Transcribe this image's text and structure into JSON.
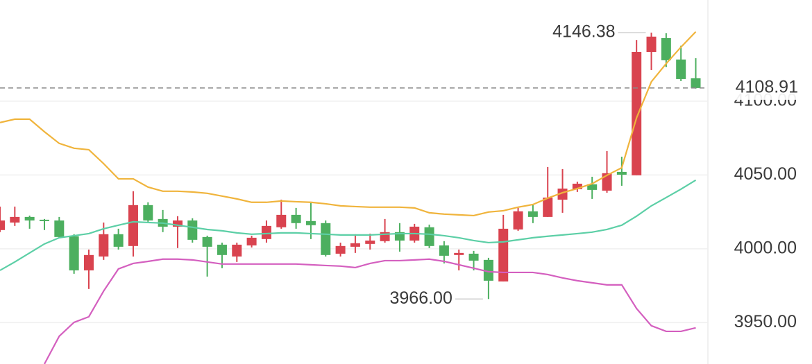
{
  "chart_data": {
    "type": "candlestick",
    "up_color": "#d9434f",
    "down_color": "#4caf5f",
    "ohlc": {
      "open": [
        4012.7,
        4017.8,
        4021.6,
        4019.7,
        4019.2,
        4008.5,
        3985.4,
        3994.8,
        4009.9,
        4001.9,
        4029.6,
        4020.2,
        4015,
        4019.2,
        4008,
        4002.8,
        3994.8,
        4002.3,
        4006.6,
        4014.6,
        4023,
        4018.8,
        4017.4,
        3996.7,
        4001.4,
        4003.3,
        4005.2,
        4011.3,
        4005.6,
        4014.6,
        4002.3,
        3995.8,
        3996.7,
        3992.5,
        3977.9,
        4013.1,
        4025.4,
        4021.6,
        4033.3,
        4040.4,
        4043.7,
        4039.4,
        4052.1,
        4049.8,
        4133.3,
        4142.7,
        4128.2,
        4115.5
      ],
      "high": [
        4028.6,
        4028.6,
        4022.5,
        4020.2,
        4021.6,
        4009.9,
        3999.5,
        4017.8,
        4013.6,
        4039,
        4031.5,
        4026.3,
        4022.1,
        4020.7,
        4008.9,
        4004.2,
        4004.2,
        4008.9,
        4019.2,
        4033.3,
        4027.7,
        4031,
        4019.2,
        4004.2,
        4009.9,
        4010.3,
        4020.2,
        4017.4,
        4016.9,
        4016.4,
        4005.2,
        3999.5,
        3998.6,
        3993.9,
        4023,
        4027.7,
        4029.6,
        4055.4,
        4054,
        4045.5,
        4048.8,
        4066.2,
        4062.4,
        4141.3,
        4146.38,
        4146,
        4137.6,
        4129.1
      ],
      "low": [
        4011.3,
        4015.5,
        4013.6,
        4012.7,
        4007.5,
        3983.1,
        3972.8,
        3992.5,
        3999.5,
        3994.8,
        4018.3,
        4011.3,
        4000.5,
        4004.2,
        3981.2,
        3986.9,
        3991.1,
        4000.9,
        4004.2,
        4013.6,
        4013.6,
        4006.6,
        3994.8,
        3994.8,
        3997.2,
        3999.5,
        4004.2,
        3998.1,
        4004.2,
        4000.5,
        3990.1,
        3985.4,
        3985.4,
        3966,
        3977.9,
        4012.2,
        4017.4,
        4021.6,
        4024.4,
        4038.5,
        4033.8,
        4038,
        4042.7,
        4049.8,
        4121.1,
        4123,
        4113.6,
        4108.5
      ],
      "close": [
        4019.2,
        4021.6,
        4019.2,
        4018.8,
        4008,
        3985.4,
        3995.8,
        4009.9,
        4001.4,
        4029.6,
        4019.2,
        4015,
        4019.2,
        4006.1,
        4001.4,
        3995.8,
        4002.8,
        4007.5,
        4015.5,
        4023,
        4017.4,
        4016,
        3995.8,
        4001.9,
        4003.8,
        4005.6,
        4011.3,
        4005.6,
        4015,
        4001.9,
        3995.3,
        3997.2,
        3992,
        3978.4,
        4013.6,
        4025.4,
        4021.6,
        4034.7,
        4040.8,
        4044.1,
        4039.9,
        4051.2,
        4050.2,
        4133.3,
        4143.7,
        4127.7,
        4115,
        4108.91
      ]
    },
    "lines": [
      {
        "color": "#f0b43c",
        "values": [
          4085.5,
          4087.8,
          4087.8,
          4079.3,
          4071.4,
          4068.1,
          4067.1,
          4057.7,
          4047.4,
          4047.4,
          4041.8,
          4039,
          4039,
          4038.5,
          4037.6,
          4035.7,
          4033.8,
          4031.5,
          4031.5,
          4032.4,
          4031.9,
          4031.5,
          4030.5,
          4029.1,
          4028.6,
          4028.2,
          4028.2,
          4028.2,
          4027.7,
          4024.4,
          4023.5,
          4023,
          4022.5,
          4024.9,
          4025.8,
          4028.2,
          4030,
          4034.3,
          4038,
          4040.8,
          4044.1,
          4049.8,
          4054.9,
          4088.7,
          4113.1,
          4125.4,
          4136.6,
          4147
        ]
      },
      {
        "color": "#5ccfa6",
        "values": [
          3985.4,
          3991.1,
          3997.2,
          4003.3,
          4007.5,
          4008.9,
          4010.3,
          4013.6,
          4016,
          4018.3,
          4017.8,
          4017.4,
          4016,
          4014.6,
          4013.1,
          4012.2,
          4010.8,
          4009.9,
          4010.3,
          4010.8,
          4010.8,
          4010.3,
          4009.9,
          4009.4,
          4009.4,
          4009.4,
          4009.9,
          4010.3,
          4010.3,
          4009.9,
          4008.9,
          4007.5,
          4005.6,
          4004.2,
          4004.7,
          4006.1,
          4007.5,
          4008.5,
          4009.4,
          4010.3,
          4011.3,
          4013.1,
          4016,
          4022.1,
          4029.1,
          4034.7,
          4040.4,
          4046.5
        ]
      },
      {
        "color": "#d45fbf",
        "values": [
          null,
          null,
          null,
          3922,
          3940.8,
          3950.2,
          3954,
          3971.4,
          3986.4,
          3990.1,
          3991.5,
          3993,
          3993,
          3992.5,
          3991.1,
          3989.7,
          3989.7,
          3989.7,
          3989.7,
          3989.7,
          3989.7,
          3989.2,
          3988.7,
          3988.3,
          3987.3,
          3990.1,
          3992,
          3992,
          3992.5,
          3993,
          3991.5,
          3989.2,
          3986.9,
          3984.5,
          3984,
          3984,
          3984,
          3982.6,
          3980.3,
          3978.4,
          3977,
          3975.6,
          3975.6,
          3959.6,
          3947.9,
          3944.1,
          3944.1,
          3946.5
        ]
      }
    ],
    "ylim": [
      3922,
      4168.5
    ],
    "yticks": [
      {
        "value": 3950,
        "label": "3950.00"
      },
      {
        "value": 4000,
        "label": "4000.00"
      },
      {
        "value": 4050,
        "label": "4050.00"
      },
      {
        "value": 4100,
        "label": "4100.00"
      }
    ],
    "grid": true,
    "max_label": {
      "value": 4146.38,
      "label": "4146.38"
    },
    "min_label": {
      "value": 3966,
      "label": "3966.00"
    },
    "last_price": {
      "value": 4108.91,
      "label": "4108.91",
      "color": "#4caf5f"
    }
  }
}
